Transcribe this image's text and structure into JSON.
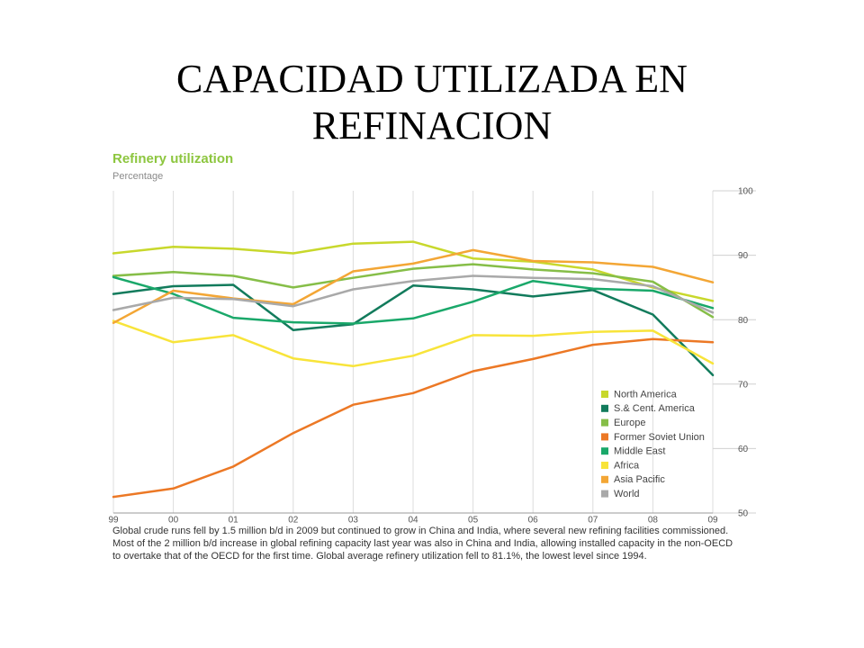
{
  "slide": {
    "title_line1": "CAPACIDAD UTILIZADA EN",
    "title_line2": "REFINACION"
  },
  "chart_data": {
    "type": "line",
    "title": "Refinery utilization",
    "subtitle": "Percentage",
    "categories": [
      "99",
      "00",
      "01",
      "02",
      "03",
      "04",
      "05",
      "06",
      "07",
      "08",
      "09"
    ],
    "y_ticks": [
      50,
      60,
      70,
      80,
      90,
      100
    ],
    "ylim": [
      50,
      100
    ],
    "y_axis_side": "right",
    "grid": "vertical",
    "legend_position": "bottom-right",
    "series": [
      {
        "name": "North America",
        "color": "#c8d82c",
        "values": [
          90.3,
          91.3,
          91.0,
          90.3,
          91.8,
          92.1,
          89.5,
          89.0,
          87.8,
          85.0,
          82.9
        ]
      },
      {
        "name": "S.& Cent. America",
        "color": "#127b5c",
        "values": [
          84.0,
          85.2,
          85.4,
          78.4,
          79.3,
          85.3,
          84.7,
          83.6,
          84.6,
          80.8,
          71.4
        ]
      },
      {
        "name": "Europe",
        "color": "#86be48",
        "values": [
          86.8,
          87.4,
          86.8,
          85.0,
          86.5,
          87.9,
          88.6,
          87.8,
          87.2,
          85.9,
          80.4
        ]
      },
      {
        "name": "Former Soviet Union",
        "color": "#ec7825",
        "values": [
          52.5,
          53.8,
          57.2,
          62.4,
          66.8,
          68.6,
          72.0,
          73.9,
          76.1,
          77.0,
          76.5
        ]
      },
      {
        "name": "Middle East",
        "color": "#1aa86a",
        "values": [
          86.6,
          84.0,
          80.3,
          79.6,
          79.4,
          80.2,
          82.8,
          86.0,
          84.8,
          84.5,
          81.8
        ]
      },
      {
        "name": "Africa",
        "color": "#f8e43a",
        "values": [
          79.8,
          76.5,
          77.6,
          74.0,
          72.8,
          74.4,
          77.6,
          77.5,
          78.1,
          78.3,
          73.2
        ]
      },
      {
        "name": "Asia Pacific",
        "color": "#f3a635",
        "values": [
          79.5,
          84.5,
          83.3,
          82.4,
          87.5,
          88.7,
          90.8,
          89.1,
          88.9,
          88.2,
          85.8
        ]
      },
      {
        "name": "World",
        "color": "#a9a9a9",
        "values": [
          81.5,
          83.4,
          83.2,
          82.1,
          84.7,
          86.0,
          86.8,
          86.5,
          86.3,
          85.2,
          81.1
        ]
      }
    ],
    "caption": "Global crude runs fell by 1.5 million b/d in 2009 but continued to grow in China and India, where several new refining facilities commissioned. Most of the 2 million b/d increase in global refining capacity last year was also in China and India, allowing installed capacity in the non-OECD to overtake that of the OECD for the first time. Global average refinery utilization fell to 81.1%, the lowest level since 1994."
  }
}
